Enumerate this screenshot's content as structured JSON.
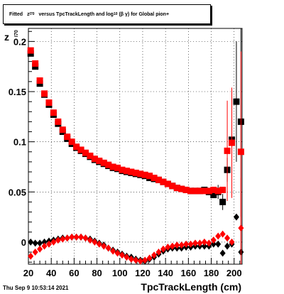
{
  "title": {
    "prefix": "Fitted",
    "var_main": "z",
    "var_sub": "I70",
    "mid": "versus TpcTrackLength and log",
    "log_sub": "10",
    "beta_gamma": "(β γ)",
    "suffix": "for Global pion+"
  },
  "footer": {
    "date": "Thu Sep  9 10:53:14 2021"
  },
  "colors": {
    "black_series": "#000000",
    "red_series": "#ff0000",
    "grid": "#000000"
  },
  "chart_data": {
    "type": "scatter",
    "xlabel": "TpcTrackLength (cm)",
    "ylabel_main": "z",
    "ylabel_sub": "I70",
    "xlim": [
      20,
      207
    ],
    "ylim": [
      -0.022,
      0.213
    ],
    "xticks": [
      20,
      40,
      60,
      80,
      100,
      120,
      140,
      160,
      180,
      200
    ],
    "yticks": [
      0,
      0.05,
      0.1,
      0.15,
      0.2
    ],
    "ytick_labels": [
      "0",
      "0.05",
      "0.1",
      "0.15",
      "0.2"
    ],
    "grid": true,
    "series": [
      {
        "marker": "square",
        "color": "#000000",
        "points": [
          [
            22,
            0.188
          ],
          [
            26,
            0.175
          ],
          [
            30,
            0.158
          ],
          [
            34,
            0.147
          ],
          [
            38,
            0.137
          ],
          [
            42,
            0.127
          ],
          [
            46,
            0.118
          ],
          [
            50,
            0.11
          ],
          [
            54,
            0.103
          ],
          [
            58,
            0.098
          ],
          [
            62,
            0.094
          ],
          [
            66,
            0.091
          ],
          [
            70,
            0.088
          ],
          [
            74,
            0.085
          ],
          [
            78,
            0.082
          ],
          [
            82,
            0.08
          ],
          [
            86,
            0.078
          ],
          [
            90,
            0.076
          ],
          [
            94,
            0.074
          ],
          [
            98,
            0.073
          ],
          [
            102,
            0.071
          ],
          [
            106,
            0.07
          ],
          [
            110,
            0.069
          ],
          [
            114,
            0.068
          ],
          [
            118,
            0.067
          ],
          [
            122,
            0.066
          ],
          [
            126,
            0.064
          ],
          [
            130,
            0.063
          ],
          [
            134,
            0.062
          ],
          [
            138,
            0.06
          ],
          [
            142,
            0.058
          ],
          [
            146,
            0.056
          ],
          [
            150,
            0.054
          ],
          [
            154,
            0.053
          ],
          [
            158,
            0.052
          ],
          [
            162,
            0.051
          ],
          [
            166,
            0.051
          ],
          [
            170,
            0.051
          ],
          [
            174,
            0.052
          ],
          [
            178,
            0.05
          ],
          [
            182,
            0.047
          ],
          [
            186,
            0.05
          ],
          [
            190,
            0.04
          ],
          [
            194,
            0.072
          ],
          [
            198,
            0.102
          ],
          [
            202,
            0.14
          ],
          [
            206,
            0.12
          ]
        ],
        "errors": [
          [
            186,
            0.007
          ],
          [
            190,
            0.008
          ],
          [
            194,
            0.012
          ],
          [
            198,
            0.015
          ],
          [
            202,
            0.06
          ],
          [
            206,
            0.095
          ]
        ]
      },
      {
        "marker": "square",
        "color": "#ff0000",
        "points": [
          [
            22,
            0.191
          ],
          [
            26,
            0.178
          ],
          [
            30,
            0.161
          ],
          [
            34,
            0.148
          ],
          [
            38,
            0.139
          ],
          [
            42,
            0.129
          ],
          [
            46,
            0.12
          ],
          [
            50,
            0.112
          ],
          [
            54,
            0.105
          ],
          [
            58,
            0.1
          ],
          [
            62,
            0.095
          ],
          [
            66,
            0.092
          ],
          [
            70,
            0.089
          ],
          [
            74,
            0.086
          ],
          [
            78,
            0.083
          ],
          [
            82,
            0.081
          ],
          [
            86,
            0.079
          ],
          [
            90,
            0.077
          ],
          [
            94,
            0.075
          ],
          [
            98,
            0.074
          ],
          [
            102,
            0.072
          ],
          [
            106,
            0.071
          ],
          [
            110,
            0.07
          ],
          [
            114,
            0.069
          ],
          [
            118,
            0.068
          ],
          [
            122,
            0.067
          ],
          [
            126,
            0.066
          ],
          [
            130,
            0.064
          ],
          [
            134,
            0.062
          ],
          [
            138,
            0.06
          ],
          [
            142,
            0.058
          ],
          [
            146,
            0.056
          ],
          [
            150,
            0.054
          ],
          [
            154,
            0.053
          ],
          [
            158,
            0.052
          ],
          [
            162,
            0.051
          ],
          [
            166,
            0.051
          ],
          [
            170,
            0.051
          ],
          [
            174,
            0.051
          ],
          [
            178,
            0.051
          ],
          [
            182,
            0.052
          ],
          [
            186,
            0.051
          ],
          [
            190,
            0.052
          ],
          [
            194,
            0.091
          ],
          [
            198,
            0.099
          ],
          [
            206,
            0.09
          ]
        ],
        "errors": [
          [
            194,
            0.05
          ],
          [
            198,
            0.055
          ],
          [
            206,
            0.1
          ]
        ]
      },
      {
        "marker": "diamond",
        "color": "#000000",
        "points": [
          [
            22,
            0.0
          ],
          [
            26,
            -0.001
          ],
          [
            30,
            -0.001
          ],
          [
            34,
            0.0
          ],
          [
            38,
            0.001
          ],
          [
            42,
            0.002
          ],
          [
            46,
            0.003
          ],
          [
            50,
            0.004
          ],
          [
            54,
            0.004
          ],
          [
            58,
            0.005
          ],
          [
            62,
            0.005
          ],
          [
            66,
            0.005
          ],
          [
            70,
            0.004
          ],
          [
            74,
            0.003
          ],
          [
            78,
            0.001
          ],
          [
            82,
            -0.001
          ],
          [
            86,
            -0.003
          ],
          [
            90,
            -0.006
          ],
          [
            94,
            -0.008
          ],
          [
            98,
            -0.01
          ],
          [
            102,
            -0.012
          ],
          [
            106,
            -0.014
          ],
          [
            110,
            -0.015
          ],
          [
            114,
            -0.017
          ],
          [
            118,
            -0.018
          ],
          [
            122,
            -0.019
          ],
          [
            126,
            -0.017
          ],
          [
            130,
            -0.015
          ],
          [
            134,
            -0.012
          ],
          [
            138,
            -0.009
          ],
          [
            142,
            -0.007
          ],
          [
            146,
            -0.006
          ],
          [
            150,
            -0.006
          ],
          [
            154,
            -0.006
          ],
          [
            158,
            -0.005
          ],
          [
            162,
            -0.005
          ],
          [
            166,
            -0.004
          ],
          [
            170,
            -0.004
          ],
          [
            174,
            -0.004
          ],
          [
            178,
            -0.004
          ],
          [
            182,
            -0.002
          ],
          [
            186,
            -0.002
          ],
          [
            190,
            -0.011
          ],
          [
            194,
            -0.004
          ],
          [
            198,
            -0.002
          ],
          [
            202,
            0.025
          ],
          [
            206,
            -0.01
          ]
        ],
        "errors": []
      },
      {
        "marker": "diamond",
        "color": "#ff0000",
        "points": [
          [
            22,
            -0.014
          ],
          [
            26,
            -0.01
          ],
          [
            30,
            -0.007
          ],
          [
            34,
            -0.004
          ],
          [
            38,
            -0.002
          ],
          [
            42,
            0.0
          ],
          [
            46,
            0.002
          ],
          [
            50,
            0.003
          ],
          [
            54,
            0.004
          ],
          [
            58,
            0.005
          ],
          [
            62,
            0.005
          ],
          [
            66,
            0.005
          ],
          [
            70,
            0.004
          ],
          [
            74,
            0.002
          ],
          [
            78,
            0.0
          ],
          [
            82,
            -0.002
          ],
          [
            86,
            -0.004
          ],
          [
            90,
            -0.006
          ],
          [
            94,
            -0.009
          ],
          [
            98,
            -0.011
          ],
          [
            102,
            -0.013
          ],
          [
            106,
            -0.015
          ],
          [
            110,
            -0.017
          ],
          [
            114,
            -0.018
          ],
          [
            118,
            -0.019
          ],
          [
            122,
            -0.018
          ],
          [
            126,
            -0.016
          ],
          [
            130,
            -0.013
          ],
          [
            134,
            -0.01
          ],
          [
            138,
            -0.007
          ],
          [
            142,
            -0.005
          ],
          [
            146,
            -0.004
          ],
          [
            150,
            -0.003
          ],
          [
            154,
            -0.003
          ],
          [
            158,
            -0.002
          ],
          [
            162,
            -0.002
          ],
          [
            166,
            -0.001
          ],
          [
            170,
            -0.001
          ],
          [
            174,
            0.0
          ],
          [
            178,
            -0.001
          ],
          [
            182,
            0.002
          ],
          [
            186,
            0.006
          ],
          [
            190,
            0.008
          ],
          [
            194,
            0.004
          ],
          [
            198,
            0.0
          ],
          [
            206,
            0.014
          ]
        ],
        "errors": [
          [
            206,
            0.05
          ]
        ]
      }
    ]
  }
}
